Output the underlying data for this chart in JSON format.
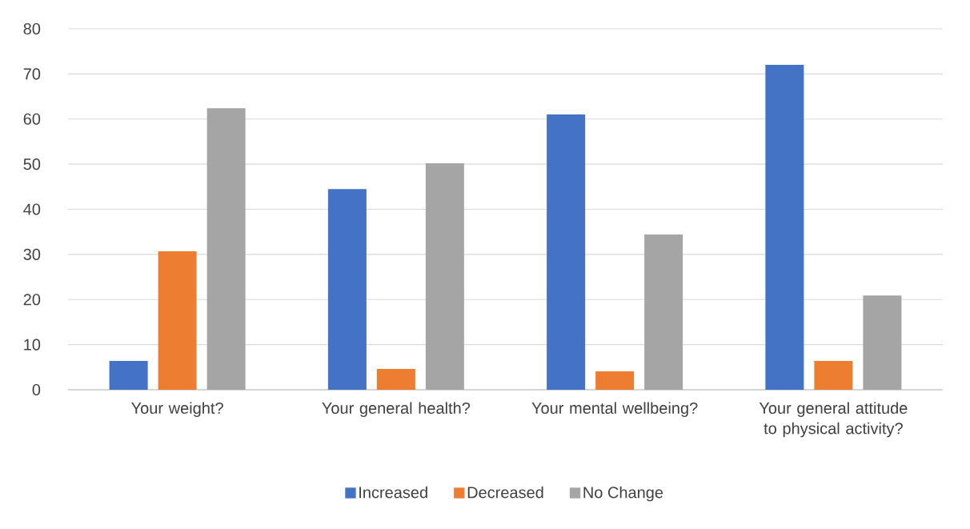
{
  "chart_data": {
    "type": "bar",
    "categories": [
      "Your weight?",
      "Your general health?",
      "Your mental wellbeing?",
      "Your general attitude to physical activity?"
    ],
    "series": [
      {
        "name": "Increased",
        "color": "#4472c4",
        "values": [
          6.4,
          44.5,
          61.0,
          72.0
        ]
      },
      {
        "name": "Decreased",
        "color": "#ed7d31",
        "values": [
          30.7,
          4.6,
          4.1,
          6.4
        ]
      },
      {
        "name": "No Change",
        "color": "#a5a5a5",
        "values": [
          62.4,
          50.2,
          34.4,
          20.9
        ]
      }
    ],
    "ylim": [
      0,
      80
    ],
    "yticks": [
      0,
      10,
      20,
      30,
      40,
      50,
      60,
      70,
      80
    ],
    "grid": "y",
    "legend": "bottom"
  }
}
